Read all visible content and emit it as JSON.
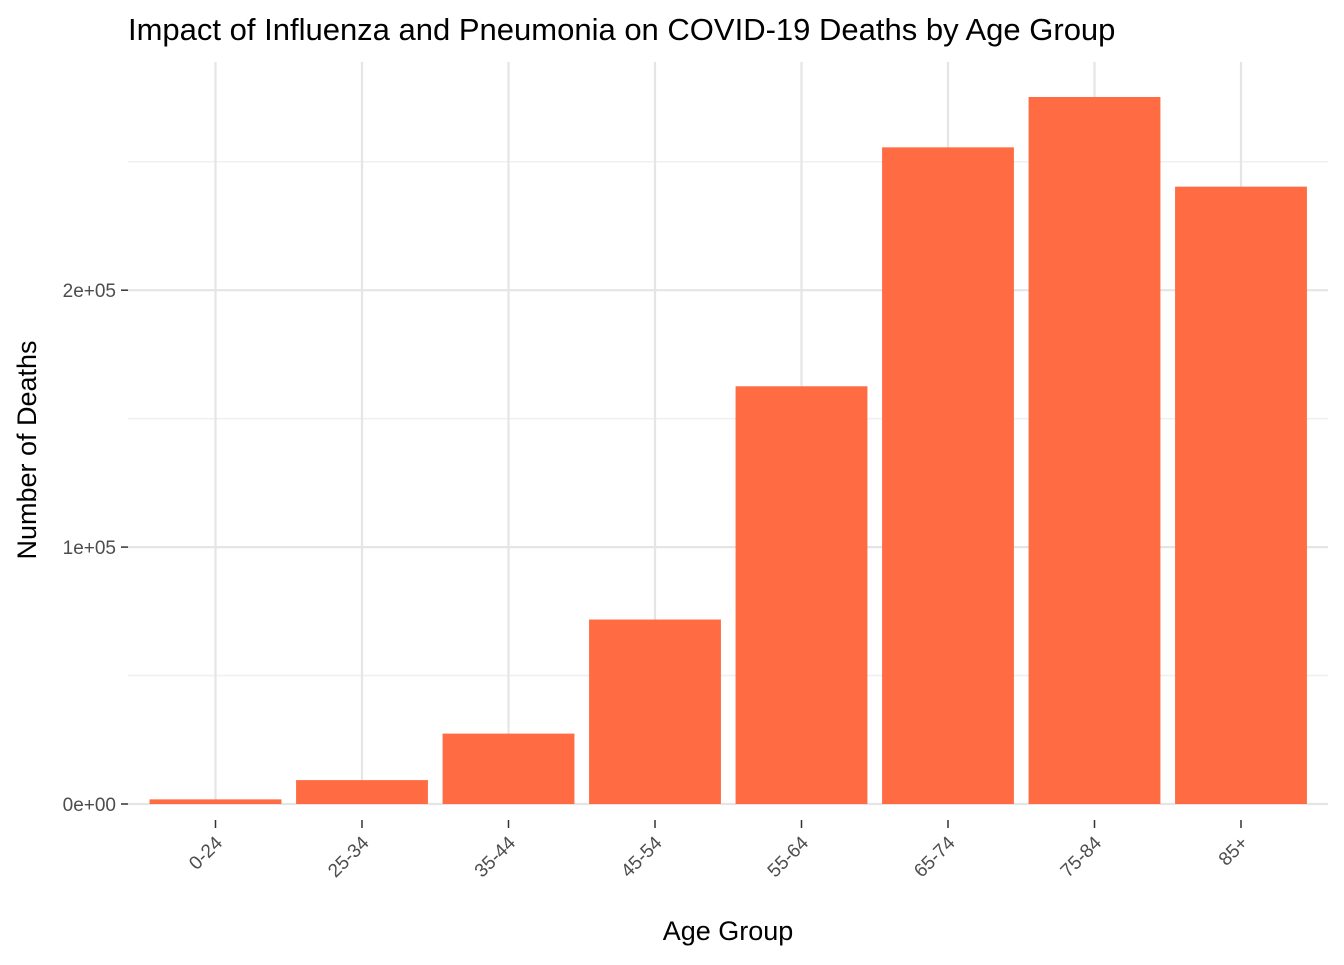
{
  "chart_data": {
    "type": "bar",
    "title": "Impact of Influenza and Pneumonia on COVID-19 Deaths by Age Group",
    "xlabel": "Age Group",
    "ylabel": "Number of Deaths",
    "categories": [
      "0-24",
      "25-34",
      "35-44",
      "45-54",
      "55-64",
      "65-74",
      "75-84",
      "85+"
    ],
    "values": [
      1800,
      9300,
      27400,
      71800,
      162600,
      255600,
      275200,
      240300
    ],
    "ylim": [
      0,
      275200
    ],
    "y_ticks": [
      {
        "value": 0,
        "label": "0e+00"
      },
      {
        "value": 100000,
        "label": "1e+05"
      },
      {
        "value": 200000,
        "label": "2e+05"
      }
    ],
    "y_minor_ticks": [
      50000,
      150000,
      250000
    ],
    "grid": true,
    "bar_color": "#ff6b42",
    "legend": "none"
  }
}
